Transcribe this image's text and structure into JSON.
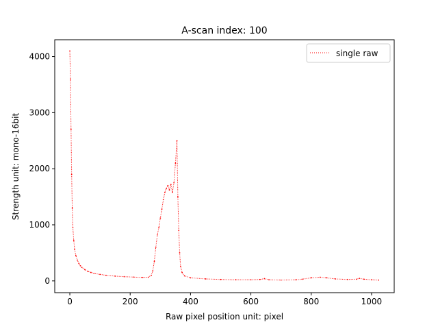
{
  "chart_data": {
    "type": "line",
    "title": "A-scan index: 100",
    "xlabel": "Raw pixel position unit: pixel",
    "ylabel": "Strength unit: mono-16bit",
    "xlim": [
      -50,
      1075
    ],
    "ylim": [
      -210,
      4300
    ],
    "x_ticks": [
      0,
      200,
      400,
      600,
      800,
      1000
    ],
    "y_ticks": [
      0,
      1000,
      2000,
      3000,
      4000
    ],
    "grid": false,
    "legend_position": "top-right",
    "series": [
      {
        "name": "single raw",
        "color": "#ff0000",
        "line_style": "dotted",
        "points": [
          [
            0,
            4100
          ],
          [
            2,
            3600
          ],
          [
            4,
            2700
          ],
          [
            6,
            1900
          ],
          [
            8,
            1300
          ],
          [
            10,
            950
          ],
          [
            13,
            720
          ],
          [
            16,
            560
          ],
          [
            20,
            450
          ],
          [
            25,
            370
          ],
          [
            30,
            310
          ],
          [
            35,
            270
          ],
          [
            40,
            240
          ],
          [
            50,
            200
          ],
          [
            60,
            170
          ],
          [
            70,
            150
          ],
          [
            80,
            135
          ],
          [
            100,
            115
          ],
          [
            120,
            100
          ],
          [
            150,
            85
          ],
          [
            180,
            75
          ],
          [
            210,
            68
          ],
          [
            240,
            62
          ],
          [
            260,
            65
          ],
          [
            270,
            100
          ],
          [
            275,
            180
          ],
          [
            280,
            350
          ],
          [
            285,
            600
          ],
          [
            290,
            820
          ],
          [
            295,
            950
          ],
          [
            300,
            1120
          ],
          [
            305,
            1280
          ],
          [
            310,
            1450
          ],
          [
            315,
            1580
          ],
          [
            320,
            1650
          ],
          [
            325,
            1700
          ],
          [
            330,
            1620
          ],
          [
            335,
            1720
          ],
          [
            340,
            1580
          ],
          [
            345,
            1750
          ],
          [
            350,
            2100
          ],
          [
            355,
            2500
          ],
          [
            358,
            1500
          ],
          [
            361,
            900
          ],
          [
            364,
            500
          ],
          [
            367,
            260
          ],
          [
            372,
            150
          ],
          [
            380,
            90
          ],
          [
            400,
            55
          ],
          [
            450,
            35
          ],
          [
            500,
            25
          ],
          [
            550,
            20
          ],
          [
            600,
            20
          ],
          [
            630,
            25
          ],
          [
            645,
            40
          ],
          [
            660,
            20
          ],
          [
            700,
            15
          ],
          [
            750,
            20
          ],
          [
            770,
            30
          ],
          [
            800,
            55
          ],
          [
            830,
            65
          ],
          [
            850,
            55
          ],
          [
            880,
            35
          ],
          [
            920,
            25
          ],
          [
            950,
            30
          ],
          [
            960,
            45
          ],
          [
            975,
            30
          ],
          [
            1000,
            20
          ],
          [
            1023,
            15
          ]
        ]
      }
    ]
  }
}
